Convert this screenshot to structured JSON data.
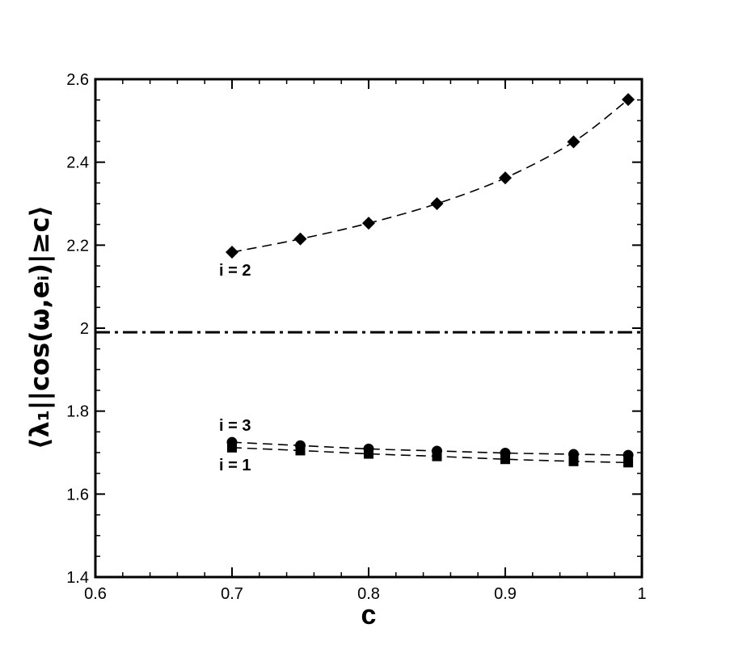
{
  "chart_data": {
    "type": "line",
    "xlabel": "c",
    "ylabel": "⟨λ₁||cos(ω,eᵢ)|≥c⟩",
    "xlim": [
      0.6,
      1.0
    ],
    "ylim": [
      1.4,
      2.6
    ],
    "x_ticks": [
      "0.6",
      "0.7",
      "0.8",
      "0.9",
      "1"
    ],
    "y_ticks": [
      "1.4",
      "1.6",
      "1.8",
      "2",
      "2.2",
      "2.4",
      "2.6"
    ],
    "x_tick_values": [
      0.6,
      0.7,
      0.8,
      0.9,
      1.0
    ],
    "y_tick_values": [
      1.4,
      1.6,
      1.8,
      2.0,
      2.2,
      2.4,
      2.6
    ],
    "grid": false,
    "series": [
      {
        "name": "i = 2",
        "marker": "diamond",
        "line_style": "dashed",
        "x": [
          0.7,
          0.75,
          0.8,
          0.85,
          0.9,
          0.95,
          0.99
        ],
        "y": [
          2.183,
          2.215,
          2.253,
          2.3,
          2.362,
          2.449,
          2.551
        ]
      },
      {
        "name": "i = 3",
        "marker": "circle",
        "line_style": "dashed",
        "x": [
          0.7,
          0.75,
          0.8,
          0.85,
          0.9,
          0.95,
          0.99
        ],
        "y": [
          1.725,
          1.717,
          1.709,
          1.704,
          1.699,
          1.696,
          1.694
        ]
      },
      {
        "name": "i = 1",
        "marker": "square",
        "line_style": "dashed",
        "x": [
          0.7,
          0.75,
          0.8,
          0.85,
          0.9,
          0.95,
          0.99
        ],
        "y": [
          1.712,
          1.705,
          1.697,
          1.691,
          1.684,
          1.679,
          1.676
        ]
      }
    ],
    "reference_lines": [
      {
        "orientation": "horizontal",
        "y": 1.99,
        "line_style": "dash-dot"
      }
    ]
  }
}
